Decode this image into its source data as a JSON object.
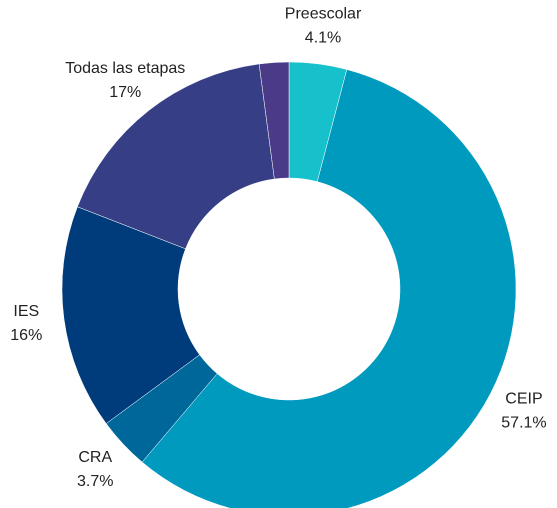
{
  "chart_data": {
    "type": "donut",
    "categories": [
      "Preescolar",
      "CEIP",
      "CRA",
      "IES",
      "Todas las etapas",
      null
    ],
    "values": [
      4.1,
      57.1,
      3.7,
      16,
      17,
      2.1
    ],
    "value_labels": [
      "4.1%",
      "57.1%",
      "3.7%",
      "16%",
      "17%",
      null
    ],
    "colors": [
      "#17c1cc",
      "#009abf",
      "#00679b",
      "#003c7c",
      "#363f86",
      "#4a3a88"
    ]
  }
}
